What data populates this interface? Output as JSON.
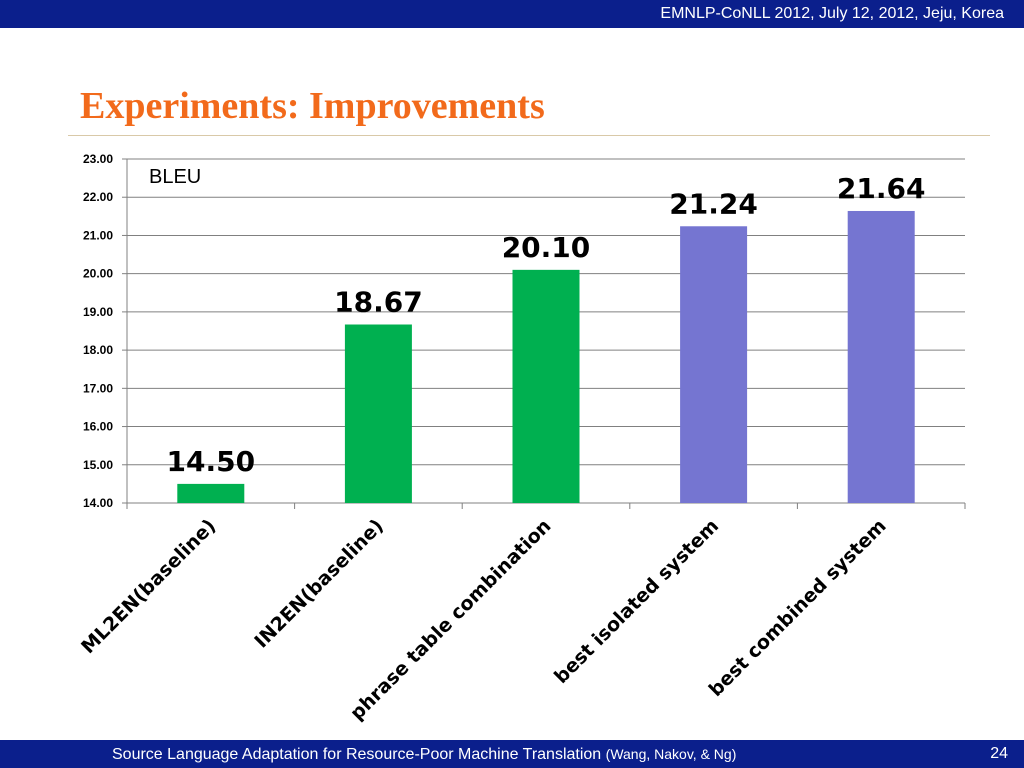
{
  "header": {
    "conference": "EMNLP-CoNLL 2012, July 12, 2012, Jeju, Korea"
  },
  "slide": {
    "title": "Experiments: Improvements"
  },
  "footer": {
    "text": "Source Language Adaptation for Resource-Poor Machine Translation",
    "authors": "(Wang, Nakov, & Ng)",
    "page": "24"
  },
  "chart_data": {
    "type": "bar",
    "title": "",
    "ylabel": "BLEU",
    "xlabel": "",
    "ylim": [
      14,
      23
    ],
    "ytick_step": 1,
    "ytick_format_decimals": 2,
    "grid": true,
    "categories": [
      "ML2EN(baseline)",
      "IN2EN(baseline)",
      "phrase table combination",
      "best isolated system",
      "best combined system"
    ],
    "values": [
      14.5,
      18.67,
      20.1,
      21.24,
      21.64
    ],
    "data_labels": [
      "14.50",
      "18.67",
      "20.10",
      "21.24",
      "21.64"
    ],
    "colors": [
      "#00b050",
      "#00b050",
      "#00b050",
      "#7575d1",
      "#7575d1"
    ]
  }
}
